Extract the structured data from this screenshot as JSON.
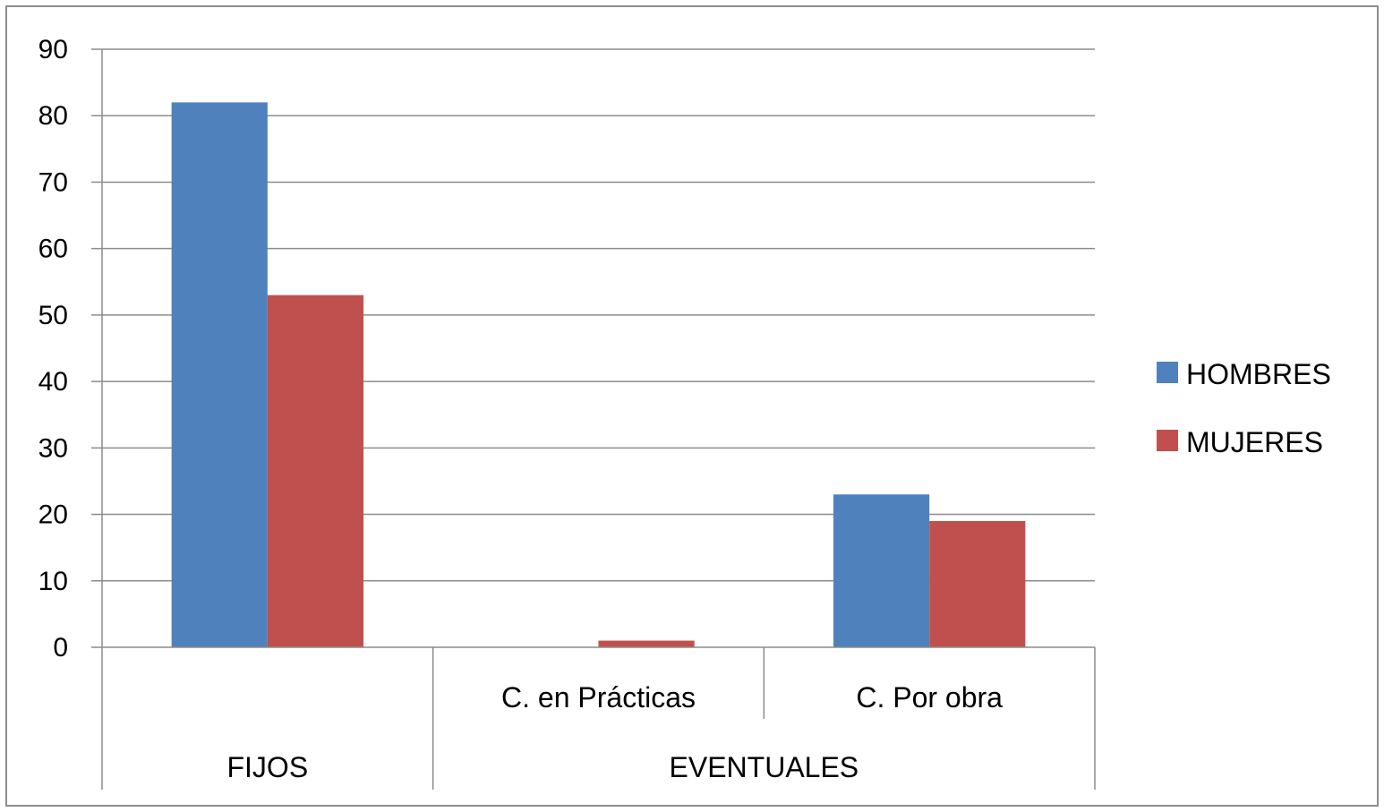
{
  "chart_data": {
    "type": "bar",
    "categories": [
      {
        "group": "FIJOS",
        "label": ""
      },
      {
        "group": "EVENTUALES",
        "label": "C. en Prácticas"
      },
      {
        "group": "EVENTUALES",
        "label": "C. Por obra"
      }
    ],
    "groups": [
      "FIJOS",
      "EVENTUALES"
    ],
    "series": [
      {
        "name": "HOMBRES",
        "values": [
          82,
          0,
          23
        ],
        "color": "#4F81BD"
      },
      {
        "name": "MUJERES",
        "values": [
          53,
          1,
          19
        ],
        "color": "#C0504D"
      }
    ],
    "ylim": [
      0,
      90
    ],
    "yticks": [
      0,
      10,
      20,
      30,
      40,
      50,
      60,
      70,
      80,
      90
    ],
    "grid": true,
    "legend": "right"
  }
}
